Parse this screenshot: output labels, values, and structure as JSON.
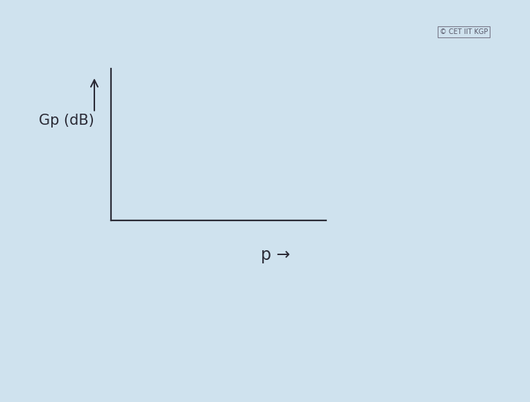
{
  "chart_data": {
    "type": "line",
    "x_label": "p →",
    "y_label": "Gp (dB)",
    "series": [],
    "tick_labels": false,
    "grid": false,
    "annotations": [
      "© CET IIT KGP"
    ]
  }
}
